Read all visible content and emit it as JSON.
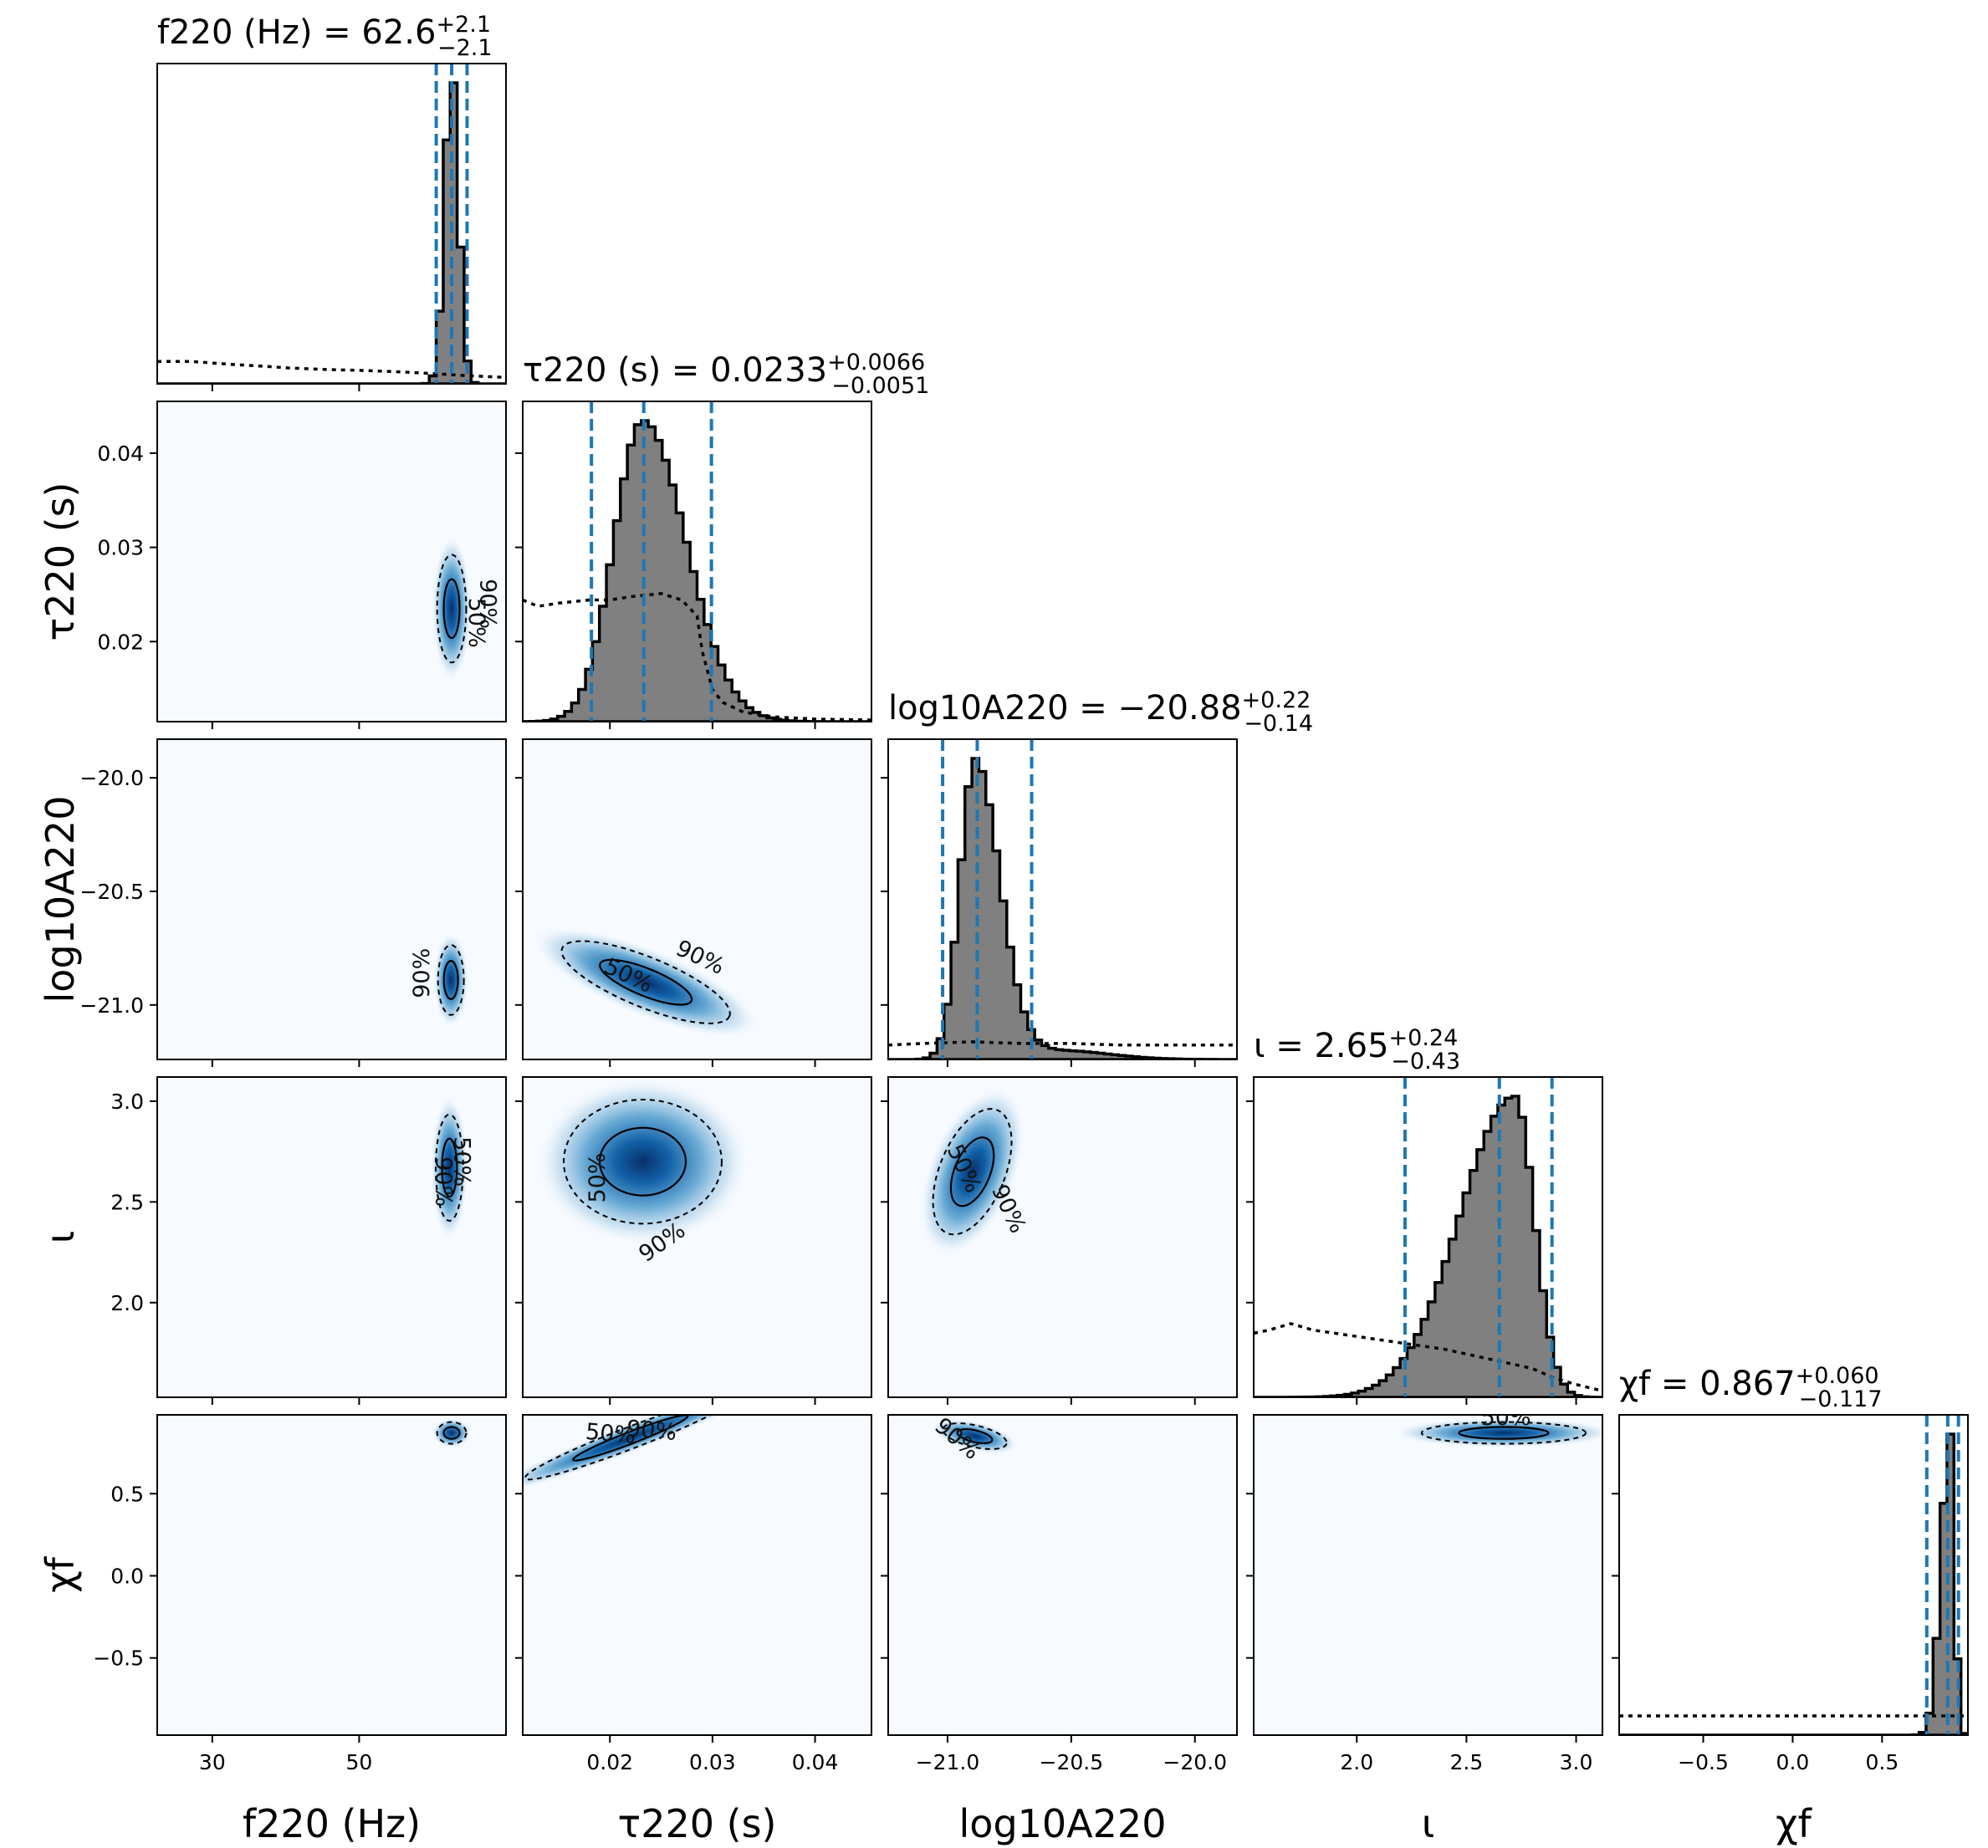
{
  "chart_data": {
    "type": "corner",
    "parameters": [
      {
        "key": "f220",
        "label": "f220 (Hz)",
        "range": [
          22.5,
          70.0
        ],
        "ticks": [
          30,
          50
        ],
        "tick_labels": [
          "30",
          "50"
        ],
        "median": 62.6,
        "lower": 60.5,
        "upper": 64.7,
        "title": {
          "name": "f220 (Hz)",
          "value": "62.6",
          "plus": "+2.1",
          "minus": "−2.1"
        },
        "prior": [
          [
            22.5,
            0.07
          ],
          [
            27,
            0.07
          ],
          [
            30,
            0.065
          ],
          [
            33,
            0.06
          ],
          [
            37,
            0.055
          ],
          [
            40,
            0.05
          ],
          [
            45,
            0.045
          ],
          [
            50,
            0.042
          ],
          [
            55,
            0.038
          ],
          [
            60,
            0.032
          ],
          [
            65,
            0.025
          ],
          [
            70,
            0.02
          ]
        ]
      },
      {
        "key": "tau220",
        "label": "τ220 (s)",
        "range": [
          0.0115,
          0.0455
        ],
        "ticks": [
          0.02,
          0.03,
          0.04
        ],
        "tick_labels": [
          "0.02",
          "0.03",
          "0.04"
        ],
        "median": 0.0233,
        "lower": 0.0182,
        "upper": 0.0299,
        "title": {
          "name": "τ220 (s)",
          "value": "0.0233",
          "plus": "+0.0066",
          "minus": "−0.0051"
        },
        "prior": [
          [
            0.0115,
            0.38
          ],
          [
            0.013,
            0.36
          ],
          [
            0.015,
            0.37
          ],
          [
            0.018,
            0.38
          ],
          [
            0.02,
            0.38
          ],
          [
            0.022,
            0.39
          ],
          [
            0.025,
            0.4
          ],
          [
            0.027,
            0.38
          ],
          [
            0.0285,
            0.33
          ],
          [
            0.029,
            0.22
          ],
          [
            0.03,
            0.1
          ],
          [
            0.031,
            0.06
          ],
          [
            0.033,
            0.03
          ],
          [
            0.036,
            0.015
          ],
          [
            0.04,
            0.008
          ],
          [
            0.0455,
            0.005
          ]
        ]
      },
      {
        "key": "logA220",
        "label": "log10A220",
        "range": [
          -21.24,
          -19.83
        ],
        "ticks": [
          -21.0,
          -20.5,
          -20.0
        ],
        "tick_labels": [
          "−21.0",
          "−20.5",
          "−20.0"
        ],
        "median": -20.88,
        "lower": -21.02,
        "upper": -20.66,
        "title": {
          "name": "log10A220",
          "value": "−20.88",
          "plus": "+0.22",
          "minus": "−0.14"
        },
        "prior": [
          [
            -21.24,
            0.045
          ],
          [
            -21.1,
            0.05
          ],
          [
            -20.9,
            0.055
          ],
          [
            -20.7,
            0.05
          ],
          [
            -20.5,
            0.05
          ],
          [
            -20.3,
            0.045
          ],
          [
            -20.1,
            0.045
          ],
          [
            -19.83,
            0.045
          ]
        ]
      },
      {
        "key": "iota",
        "label": "ι",
        "range": [
          1.53,
          3.12
        ],
        "ticks": [
          2.0,
          2.5,
          3.0
        ],
        "tick_labels": [
          "2.0",
          "2.5",
          "3.0"
        ],
        "median": 2.65,
        "lower": 2.22,
        "upper": 2.89,
        "title": {
          "name": "ι",
          "value": "2.65",
          "plus": "+0.24",
          "minus": "−0.43"
        },
        "prior": [
          [
            1.53,
            0.2
          ],
          [
            1.6,
            0.21
          ],
          [
            1.7,
            0.23
          ],
          [
            1.8,
            0.21
          ],
          [
            1.9,
            0.2
          ],
          [
            2.0,
            0.19
          ],
          [
            2.1,
            0.18
          ],
          [
            2.2,
            0.17
          ],
          [
            2.4,
            0.15
          ],
          [
            2.6,
            0.12
          ],
          [
            2.8,
            0.09
          ],
          [
            2.9,
            0.06
          ],
          [
            3.0,
            0.04
          ],
          [
            3.12,
            0.02
          ]
        ]
      },
      {
        "key": "chif",
        "label": "χf",
        "range": [
          -0.97,
          0.98
        ],
        "ticks": [
          -0.5,
          0.0,
          0.5
        ],
        "tick_labels": [
          "−0.5",
          "0.0",
          "0.5"
        ],
        "median": 0.867,
        "lower": 0.75,
        "upper": 0.927,
        "title": {
          "name": "χf",
          "value": "0.867",
          "plus": "+0.060",
          "minus": "−0.117"
        },
        "prior": [
          [
            -0.97,
            0.06
          ],
          [
            -0.5,
            0.06
          ],
          [
            0.0,
            0.06
          ],
          [
            0.5,
            0.06
          ],
          [
            0.98,
            0.06
          ]
        ]
      }
    ],
    "y_ticks": {
      "tau220": {
        "ticks": [
          0.02,
          0.03,
          0.04
        ],
        "tick_labels": [
          "0.02",
          "0.03",
          "0.04"
        ]
      },
      "logA220": {
        "ticks": [
          -21.0,
          -20.5,
          -20.0
        ],
        "tick_labels": [
          "−21.0",
          "−20.5",
          "−20.0"
        ]
      },
      "iota": {
        "ticks": [
          2.0,
          2.5,
          3.0
        ],
        "tick_labels": [
          "2.0",
          "2.5",
          "3.0"
        ]
      },
      "chif": {
        "ticks": [
          -0.5,
          0.0,
          0.5
        ],
        "tick_labels": [
          "−0.5",
          "0.0",
          "0.5"
        ]
      }
    },
    "pairs": [
      {
        "x": "f220",
        "y": "tau220",
        "cx": 62.6,
        "cy": 0.0235,
        "sx": 0.9,
        "sy": 0.0026,
        "corr": 0.0,
        "label_pos": [
          [
            65,
            0.022,
            "50%",
            90
          ],
          [
            66.5,
            0.024,
            "90%",
            90
          ]
        ]
      },
      {
        "x": "f220",
        "y": "logA220",
        "cx": 62.5,
        "cy": -20.89,
        "sx": 0.8,
        "sy": 0.07,
        "corr": 0.0,
        "label_pos": [
          [
            59.5,
            -20.86,
            "90%",
            -90
          ]
        ]
      },
      {
        "x": "f220",
        "y": "iota",
        "cx": 62.3,
        "cy": 2.67,
        "sx": 0.85,
        "sy": 0.12,
        "corr": 0.0,
        "label_pos": [
          [
            60.5,
            2.6,
            "90%",
            90
          ],
          [
            63,
            2.7,
            "50%",
            90
          ]
        ]
      },
      {
        "x": "f220",
        "y": "chif",
        "cx": 62.6,
        "cy": 0.87,
        "sx": 0.9,
        "sy": 0.03,
        "corr": 0.0,
        "label_pos": []
      },
      {
        "x": "tau220",
        "y": "logA220",
        "cx": 0.0235,
        "cy": -20.9,
        "sx": 0.004,
        "sy": 0.05,
        "corr": -0.75,
        "label_pos": [
          [
            0.0215,
            -20.9,
            "50%",
            25
          ],
          [
            0.0285,
            -20.82,
            "90%",
            25
          ]
        ]
      },
      {
        "x": "tau220",
        "y": "iota",
        "cx": 0.0232,
        "cy": 2.7,
        "sx": 0.0035,
        "sy": 0.14,
        "corr": 0.0,
        "label_pos": [
          [
            0.0195,
            2.62,
            "50%",
            -90
          ],
          [
            0.0255,
            2.27,
            "90%",
            -35
          ]
        ]
      },
      {
        "x": "tau220",
        "y": "chif",
        "cx": 0.022,
        "cy": 0.84,
        "sx": 0.005,
        "sy": 0.03,
        "corr": 0.7,
        "label_pos": [
          [
            0.02,
            0.82,
            "50%",
            5
          ],
          [
            0.024,
            0.84,
            "90%",
            5
          ]
        ]
      },
      {
        "x": "logA220",
        "y": "iota",
        "cx": -20.9,
        "cy": 2.65,
        "sx": 0.06,
        "sy": 0.15,
        "corr": -0.75,
        "label_pos": [
          [
            -20.96,
            2.65,
            "50%",
            65
          ],
          [
            -20.78,
            2.45,
            "90%",
            65
          ]
        ]
      },
      {
        "x": "logA220",
        "y": "chif",
        "cx": -20.89,
        "cy": 0.85,
        "sx": 0.06,
        "sy": 0.03,
        "corr": -0.4,
        "label_pos": [
          [
            -20.98,
            0.8,
            "90%",
            40
          ]
        ]
      },
      {
        "x": "iota",
        "y": "chif",
        "cx": 2.67,
        "cy": 0.87,
        "sx": 0.17,
        "sy": 0.03,
        "corr": 0.0,
        "label_pos": [
          [
            2.68,
            0.92,
            "50%",
            0
          ]
        ]
      }
    ],
    "contour_levels": [
      "50%",
      "90%"
    ],
    "colors": {
      "hist_fill": "#808080",
      "quantile_line": "#1f77b4",
      "density_map": "Blues",
      "prior_line": "#000000"
    }
  }
}
